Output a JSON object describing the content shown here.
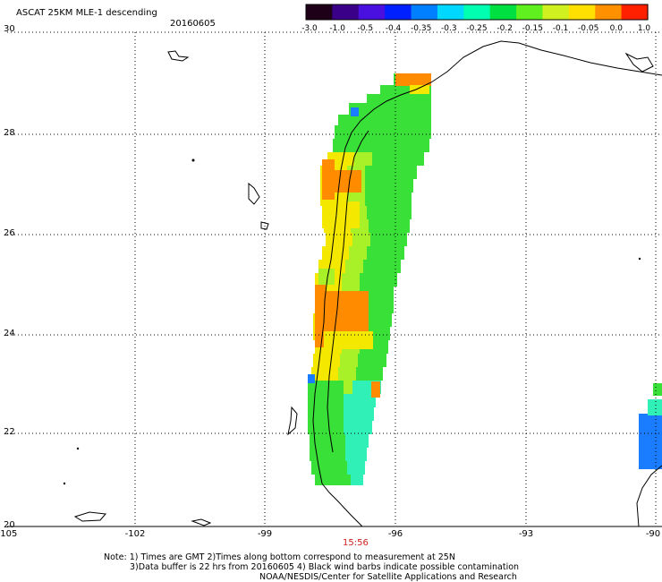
{
  "header": {
    "title": "ASCAT 25KM MLE-1 descending",
    "date": "20160605"
  },
  "colorbar": {
    "labels": [
      "-3.0",
      "-1.0",
      "-0.5",
      "-0.4",
      "-0.35",
      "-0.3",
      "-0.25",
      "-0.2",
      "-0.15",
      "-0.1",
      "-0.05",
      "0.0",
      "1.0"
    ],
    "colors": [
      "#1e0018",
      "#3a0088",
      "#4a10e0",
      "#0020ff",
      "#0080ff",
      "#00d8ff",
      "#00ffb0",
      "#00e040",
      "#60f020",
      "#d0f020",
      "#ffe000",
      "#ff9000",
      "#ff2000"
    ]
  },
  "axes": {
    "lat_labels": [
      "30",
      "28",
      "26",
      "24",
      "22",
      "20"
    ],
    "lon_labels": [
      "-105",
      "-102",
      "-99",
      "-96",
      "-93",
      "-90"
    ]
  },
  "pass_time": "15:56",
  "notes": {
    "line1": "Note: 1) Times are GMT 2)Times along bottom correspond to measurement at 25N",
    "line2": "3)Data buffer is 22 hrs from 20160605 4) Black wind barbs indicate possible contamination",
    "line3": "NOAA/NESDIS/Center for Satellite Applications and Research"
  },
  "map_colors": {
    "orange": "#ff8c00",
    "yellow": "#f4e800",
    "lime": "#a8f028",
    "green": "#38e038",
    "cyan": "#30f0b8",
    "blue": "#1a7cff"
  }
}
